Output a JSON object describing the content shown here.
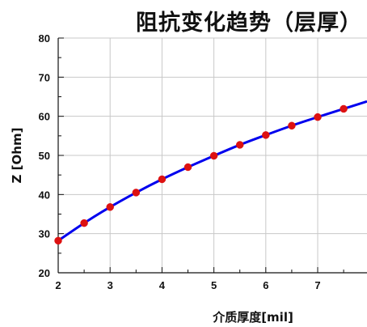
{
  "chart_data": {
    "type": "line",
    "title": "阻抗变化趋势（层厚）",
    "xlabel": "介质厚度[mil]",
    "ylabel": "Z [Ohm]",
    "xlim": [
      2,
      7.95
    ],
    "ylim": [
      20,
      80
    ],
    "x_ticks": [
      2,
      3,
      4,
      5,
      6,
      7
    ],
    "y_ticks": [
      20,
      30,
      40,
      50,
      60,
      70,
      80
    ],
    "grid": true,
    "series": [
      {
        "line_color": "#0000ee",
        "marker_color": "#dd1111",
        "x": [
          2,
          2.5,
          3,
          3.5,
          4,
          4.5,
          5,
          5.5,
          6,
          6.5,
          7,
          7.5
        ],
        "y": [
          28.2,
          32.7,
          36.8,
          40.5,
          43.9,
          47.0,
          49.9,
          52.7,
          55.2,
          57.6,
          59.8,
          61.9
        ]
      }
    ],
    "curve_end": {
      "x": 7.95,
      "y": 63.8
    }
  }
}
